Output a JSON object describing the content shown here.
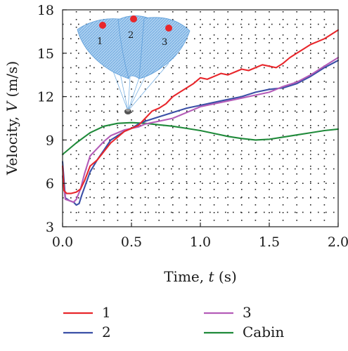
{
  "chart_data": {
    "type": "line",
    "xlabel": "Time, t (s)",
    "ylabel": "Velocity, V (m/s)",
    "xlim": [
      0,
      2
    ],
    "ylim": [
      3,
      18
    ],
    "xticks": [
      "0.0",
      "0.5",
      "1.0",
      "1.5",
      "2.0"
    ],
    "yticks": [
      "3",
      "6",
      "9",
      "12",
      "15",
      "18"
    ],
    "grid": true,
    "legend_position": "bottom",
    "series": [
      {
        "name": "1",
        "color": "#e8262b",
        "x": [
          0,
          0.01,
          0.03,
          0.06,
          0.1,
          0.13,
          0.16,
          0.2,
          0.25,
          0.3,
          0.35,
          0.4,
          0.45,
          0.5,
          0.55,
          0.6,
          0.65,
          0.7,
          0.75,
          0.8,
          0.85,
          0.9,
          0.95,
          1.0,
          1.05,
          1.1,
          1.15,
          1.2,
          1.25,
          1.3,
          1.35,
          1.4,
          1.45,
          1.5,
          1.55,
          1.6,
          1.65,
          1.7,
          1.75,
          1.8,
          1.85,
          1.9,
          1.95,
          2.0
        ],
        "y": [
          7.2,
          5.5,
          5.3,
          5.3,
          5.4,
          5.6,
          6.2,
          7.2,
          7.6,
          8.2,
          8.8,
          9.2,
          9.6,
          9.8,
          10.0,
          10.5,
          11.0,
          11.2,
          11.5,
          12.0,
          12.3,
          12.6,
          12.9,
          13.3,
          13.2,
          13.4,
          13.6,
          13.5,
          13.7,
          13.9,
          13.8,
          14.0,
          14.2,
          14.1,
          14.0,
          14.3,
          14.7,
          15.0,
          15.3,
          15.6,
          15.8,
          16.0,
          16.3,
          16.6
        ]
      },
      {
        "name": "2",
        "color": "#3a4fa6",
        "x": [
          0,
          0.02,
          0.05,
          0.08,
          0.1,
          0.12,
          0.14,
          0.17,
          0.2,
          0.25,
          0.3,
          0.35,
          0.4,
          0.45,
          0.5,
          0.55,
          0.6,
          0.7,
          0.8,
          0.9,
          1.0,
          1.1,
          1.2,
          1.3,
          1.4,
          1.5,
          1.6,
          1.7,
          1.8,
          1.9,
          2.0
        ],
        "y": [
          7.5,
          5.0,
          4.8,
          4.7,
          4.5,
          4.6,
          5.2,
          6.0,
          6.8,
          7.6,
          8.3,
          9.0,
          9.3,
          9.6,
          9.8,
          10.1,
          10.3,
          10.6,
          10.9,
          11.2,
          11.4,
          11.6,
          11.8,
          12.0,
          12.3,
          12.5,
          12.6,
          12.9,
          13.4,
          14.0,
          14.5
        ]
      },
      {
        "name": "3",
        "color": "#b45cb8",
        "x": [
          0,
          0.02,
          0.05,
          0.08,
          0.1,
          0.13,
          0.16,
          0.2,
          0.25,
          0.3,
          0.35,
          0.4,
          0.45,
          0.5,
          0.55,
          0.6,
          0.7,
          0.8,
          0.9,
          1.0,
          1.1,
          1.2,
          1.3,
          1.4,
          1.5,
          1.6,
          1.7,
          1.8,
          1.9,
          2.0
        ],
        "y": [
          6.5,
          4.9,
          4.8,
          4.7,
          4.9,
          5.6,
          6.7,
          7.9,
          8.4,
          8.9,
          9.3,
          9.5,
          9.7,
          9.8,
          9.9,
          10.1,
          10.3,
          10.5,
          10.9,
          11.3,
          11.5,
          11.7,
          11.9,
          12.1,
          12.3,
          12.7,
          13.0,
          13.5,
          14.1,
          14.7
        ]
      },
      {
        "name": "Cabin",
        "color": "#1f8a3a",
        "x": [
          0,
          0.1,
          0.2,
          0.3,
          0.4,
          0.5,
          0.6,
          0.7,
          0.8,
          0.9,
          1.0,
          1.1,
          1.2,
          1.3,
          1.4,
          1.5,
          1.6,
          1.7,
          1.8,
          1.9,
          2.0
        ],
        "y": [
          8.0,
          8.8,
          9.5,
          9.95,
          10.15,
          10.2,
          10.15,
          10.05,
          9.95,
          9.8,
          9.65,
          9.45,
          9.25,
          9.1,
          9.0,
          9.05,
          9.2,
          9.35,
          9.5,
          9.65,
          9.75
        ]
      }
    ],
    "inset": {
      "description_labels": [
        "1",
        "2",
        "3"
      ],
      "canopy_color": "#7fb4e6",
      "marker_color": "#e8262b"
    }
  }
}
